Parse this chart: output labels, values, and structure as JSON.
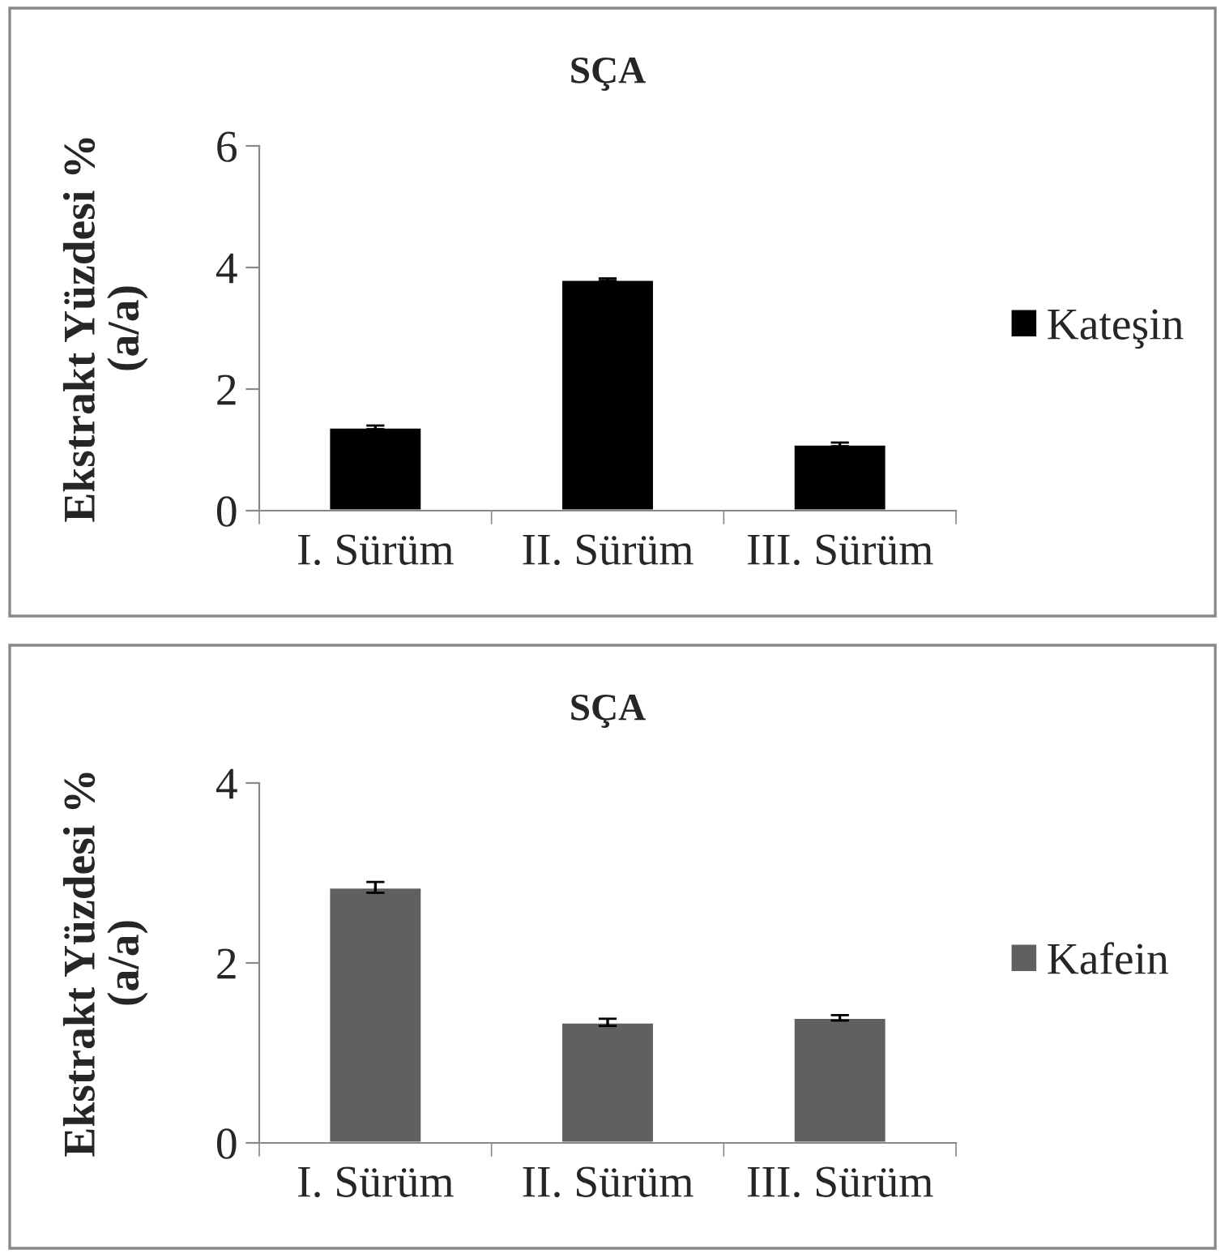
{
  "chart_data": [
    {
      "type": "bar",
      "title": "SÇA",
      "ylabel": "Ekstrakt Yüzdesi %\n(a/a)",
      "categories": [
        "I. Sürüm",
        "II. Sürüm",
        "III. Sürüm"
      ],
      "series": [
        {
          "name": "Kateşin",
          "color": "#000000",
          "values": [
            1.37,
            3.8,
            1.09
          ],
          "errors": [
            0.03,
            0.02,
            0.03
          ]
        }
      ],
      "ylim": [
        0,
        6
      ],
      "yticks": [
        0,
        2,
        4,
        6
      ],
      "grid": false,
      "legend": "right"
    },
    {
      "type": "bar",
      "title": "SÇA",
      "ylabel": "Ekstrakt Yüzdesi %\n(a/a)",
      "categories": [
        "I. Sürüm",
        "II. Sürüm",
        "III. Sürüm"
      ],
      "series": [
        {
          "name": "Kafein",
          "color": "#606060",
          "values": [
            2.84,
            1.34,
            1.39
          ],
          "errors": [
            0.06,
            0.04,
            0.03
          ]
        }
      ],
      "ylim": [
        0,
        4
      ],
      "yticks": [
        0,
        2,
        4
      ],
      "grid": false,
      "legend": "right"
    }
  ]
}
